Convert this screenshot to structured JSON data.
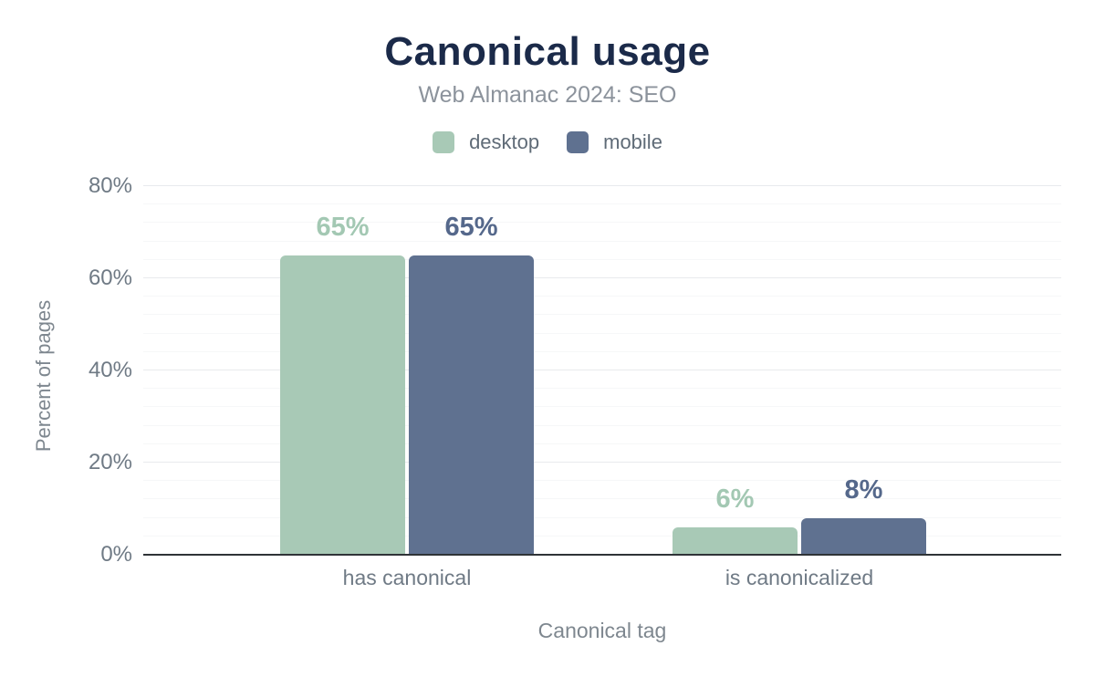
{
  "chart_data": {
    "type": "bar",
    "title": "Canonical usage",
    "subtitle": "Web Almanac 2024: SEO",
    "categories": [
      "has canonical",
      "is canonicalized"
    ],
    "series": [
      {
        "name": "desktop",
        "color": "#a8c9b6",
        "label_color": "#a3c8b3",
        "values": [
          65,
          6
        ],
        "value_labels": [
          "65%",
          "6%"
        ]
      },
      {
        "name": "mobile",
        "color": "#5f7190",
        "label_color": "#55688b",
        "values": [
          65,
          8
        ],
        "value_labels": [
          "65%",
          "8%"
        ]
      }
    ],
    "xlabel": "Canonical tag",
    "ylabel": "Percent of pages",
    "ylim": [
      0,
      80
    ],
    "yticks": [
      {
        "v": 0,
        "label": "0%"
      },
      {
        "v": 20,
        "label": "20%"
      },
      {
        "v": 40,
        "label": "40%"
      },
      {
        "v": 60,
        "label": "60%"
      },
      {
        "v": 80,
        "label": "80%"
      }
    ],
    "grid": {
      "minor_step": 4,
      "major_step": 20,
      "minor_on": true,
      "major_on": true
    },
    "legend_position": "top",
    "colors": {
      "title": "#1b2a49",
      "subtitle_text": "#8c939c",
      "tick_text": "#6f7a85",
      "axis_title_text": "#7e878f",
      "legend_text": "#5f6b77",
      "axis_line": "#2f3337",
      "major_grid": "#e8eaed",
      "minor_grid": "#f6f7f8"
    }
  }
}
